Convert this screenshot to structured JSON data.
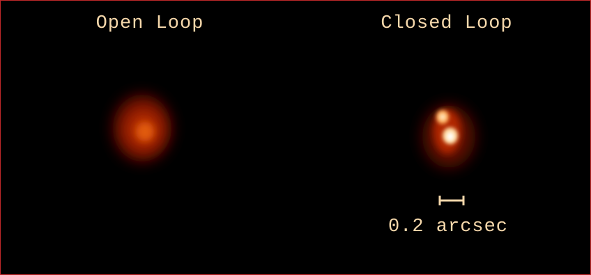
{
  "panels": [
    {
      "label": "Open Loop"
    },
    {
      "label": "Closed Loop"
    }
  ],
  "scale_bar": {
    "label": "0.2 arcsec"
  }
}
